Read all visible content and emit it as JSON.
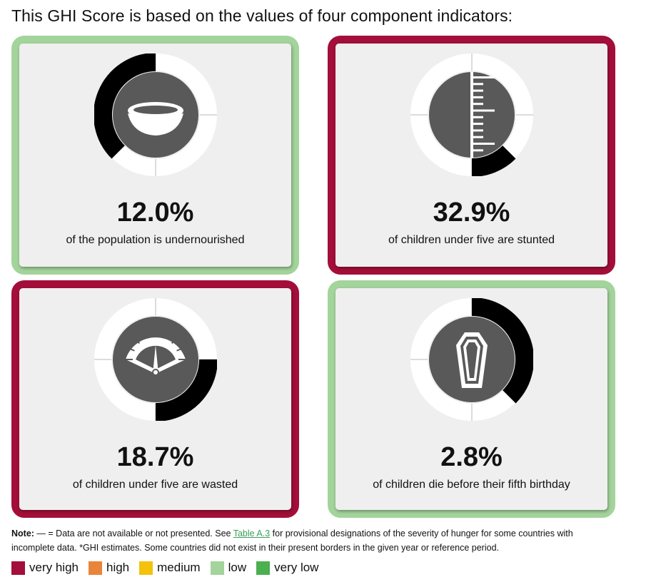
{
  "title": "This GHI Score is based on the values of four component indicators:",
  "colors": {
    "very_high": "#a30e3a",
    "high": "#e8853a",
    "medium": "#f4c20d",
    "low": "#a3d49b",
    "very_low": "#4caf50"
  },
  "indicators": [
    {
      "value_text": "12.0%",
      "label": "of the population is undernourished",
      "severity": "low",
      "icon": "bowl-icon",
      "arc_start_pct": 62.5,
      "arc_end_pct": 100
    },
    {
      "value_text": "32.9%",
      "label": "of children under five are stunted",
      "severity": "very high",
      "icon": "height-ruler-icon",
      "arc_start_pct": 37.5,
      "arc_end_pct": 50
    },
    {
      "value_text": "18.7%",
      "label": "of children under five are wasted",
      "severity": "very high",
      "icon": "weight-scale-icon",
      "arc_start_pct": 25,
      "arc_end_pct": 50
    },
    {
      "value_text": "2.8%",
      "label": "of children die before their fifth birthday",
      "severity": "low",
      "icon": "coffin-icon",
      "arc_start_pct": 0,
      "arc_end_pct": 37.5
    }
  ],
  "note": {
    "label": "Note:",
    "text_before_link": " — = Data are not available or not presented. See ",
    "link_text": "Table A.3",
    "text_after_link": " for provisional designations of the severity of hunger for some countries with incomplete data. *GHI estimates. Some countries did not exist in their present borders in the given year or reference period."
  },
  "legend": [
    {
      "label": "very high",
      "color": "#a30e3a"
    },
    {
      "label": "high",
      "color": "#e8853a"
    },
    {
      "label": "medium",
      "color": "#f4c20d"
    },
    {
      "label": "low",
      "color": "#a3d49b"
    },
    {
      "label": "very low",
      "color": "#4caf50"
    }
  ]
}
